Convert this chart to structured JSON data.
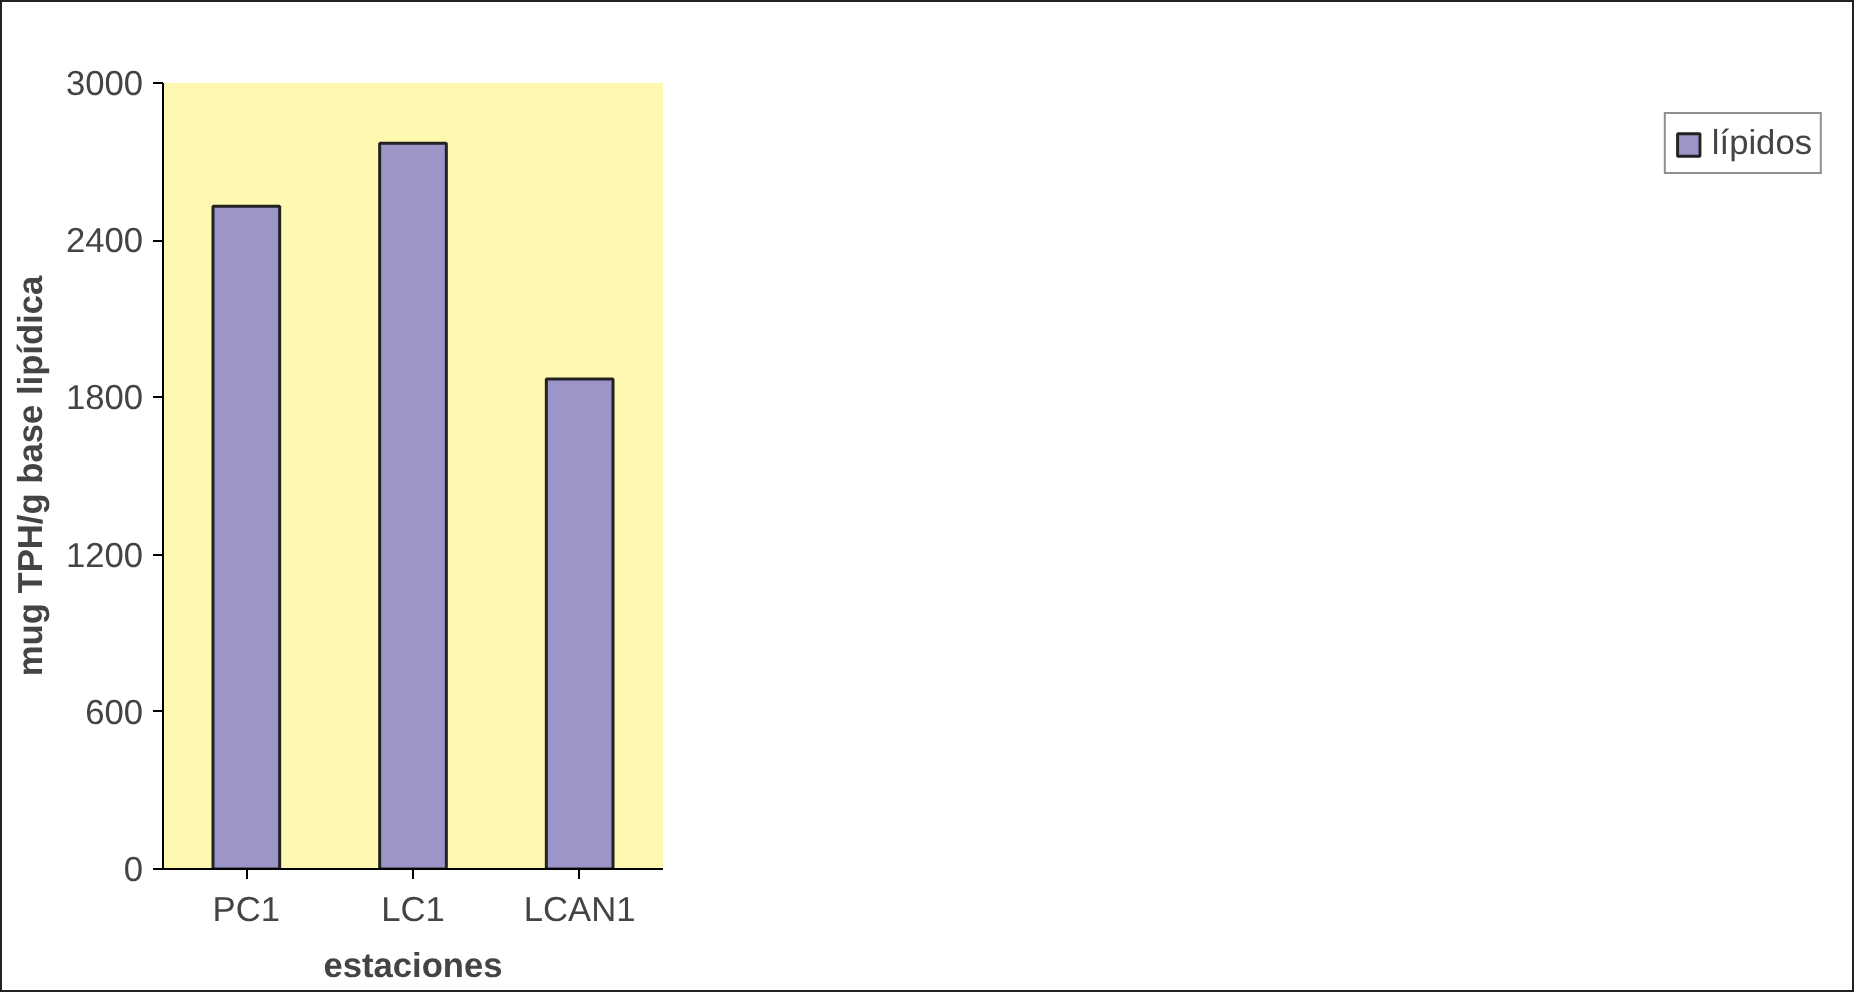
{
  "chart_data": {
    "type": "bar",
    "categories": [
      "PC1",
      "LC1",
      "LCAN1"
    ],
    "xlabel": "estaciones",
    "ylabel": "mug TPH/g base lipídica",
    "series": [
      {
        "name": "lípidos",
        "color": "#9c95c8",
        "values": [
          2530,
          2770,
          1870
        ]
      }
    ],
    "ylim": [
      0,
      3000
    ],
    "yticks": [
      0,
      600,
      1200,
      1800,
      2400,
      3000
    ],
    "grid": false,
    "legend": "right"
  }
}
